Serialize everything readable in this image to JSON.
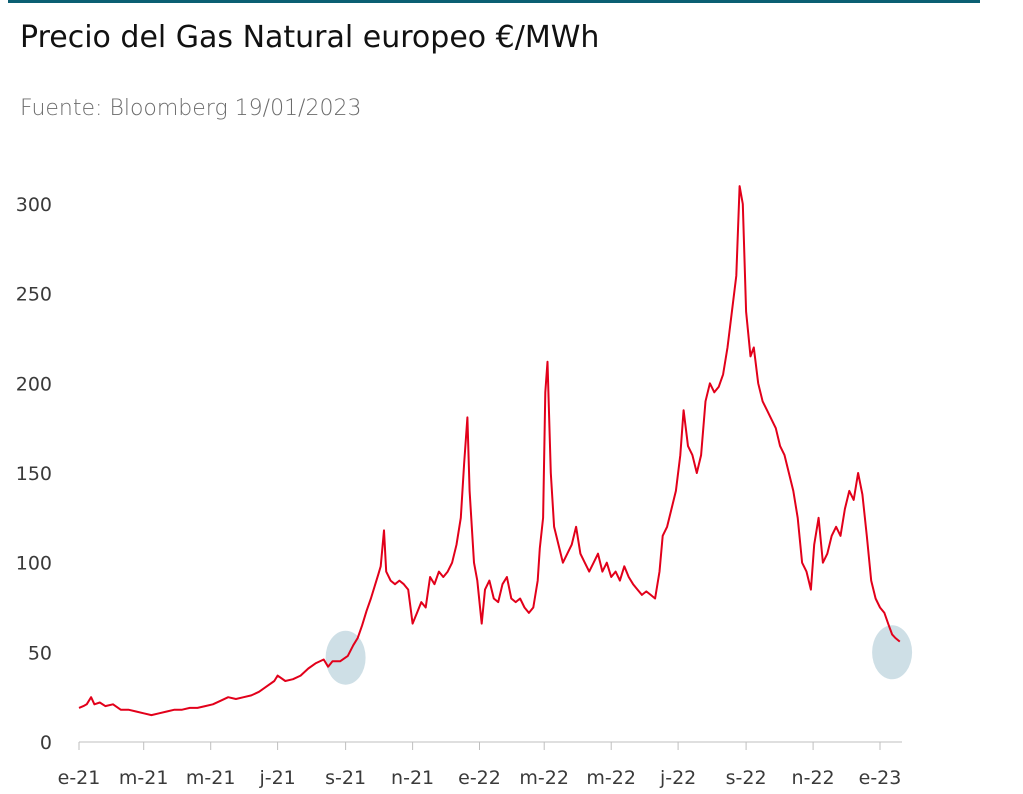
{
  "title": "Precio del Gas Natural europeo €/MWh",
  "subtitle": "Fuente: Bloomberg 19/01/2023",
  "colors": {
    "line": "#e2001a",
    "rule": "#0b5f73",
    "highlight": "#c9dce3"
  },
  "chart_data": {
    "type": "line",
    "title": "Precio del Gas Natural europeo €/MWh",
    "xlabel": "",
    "ylabel": "",
    "ylim": [
      0,
      300
    ],
    "yticks": [
      0,
      50,
      100,
      150,
      200,
      250,
      300
    ],
    "xticks": [
      {
        "date": "2021-01-01",
        "label": "e-21"
      },
      {
        "date": "2021-03-01",
        "label": "m-21"
      },
      {
        "date": "2021-05-01",
        "label": "m-21"
      },
      {
        "date": "2021-07-01",
        "label": "j-21"
      },
      {
        "date": "2021-09-01",
        "label": "s-21"
      },
      {
        "date": "2021-11-01",
        "label": "n-21"
      },
      {
        "date": "2022-01-01",
        "label": "e-22"
      },
      {
        "date": "2022-03-01",
        "label": "m-22"
      },
      {
        "date": "2022-05-01",
        "label": "m-22"
      },
      {
        "date": "2022-07-01",
        "label": "j-22"
      },
      {
        "date": "2022-09-01",
        "label": "s-22"
      },
      {
        "date": "2022-11-01",
        "label": "n-22"
      },
      {
        "date": "2023-01-01",
        "label": "e-23"
      }
    ],
    "grid": false,
    "legend": "none",
    "highlights": [
      {
        "date": "2021-09-01",
        "value": 47
      },
      {
        "date": "2023-01-12",
        "value": 50
      }
    ],
    "series": [
      {
        "points": [
          [
            "2021-01-01",
            19
          ],
          [
            "2021-01-05",
            20
          ],
          [
            "2021-01-08",
            21
          ],
          [
            "2021-01-12",
            25
          ],
          [
            "2021-01-15",
            21
          ],
          [
            "2021-01-20",
            22
          ],
          [
            "2021-01-25",
            20
          ],
          [
            "2021-02-01",
            21
          ],
          [
            "2021-02-08",
            18
          ],
          [
            "2021-02-15",
            18
          ],
          [
            "2021-02-22",
            17
          ],
          [
            "2021-03-01",
            16
          ],
          [
            "2021-03-08",
            15
          ],
          [
            "2021-03-15",
            16
          ],
          [
            "2021-03-22",
            17
          ],
          [
            "2021-03-29",
            18
          ],
          [
            "2021-04-05",
            18
          ],
          [
            "2021-04-12",
            19
          ],
          [
            "2021-04-19",
            19
          ],
          [
            "2021-04-26",
            20
          ],
          [
            "2021-05-03",
            21
          ],
          [
            "2021-05-10",
            23
          ],
          [
            "2021-05-17",
            25
          ],
          [
            "2021-05-24",
            24
          ],
          [
            "2021-05-31",
            25
          ],
          [
            "2021-06-07",
            26
          ],
          [
            "2021-06-14",
            28
          ],
          [
            "2021-06-21",
            31
          ],
          [
            "2021-06-28",
            34
          ],
          [
            "2021-07-01",
            37
          ],
          [
            "2021-07-08",
            34
          ],
          [
            "2021-07-15",
            35
          ],
          [
            "2021-07-22",
            37
          ],
          [
            "2021-07-29",
            41
          ],
          [
            "2021-08-05",
            44
          ],
          [
            "2021-08-12",
            46
          ],
          [
            "2021-08-16",
            42
          ],
          [
            "2021-08-20",
            45
          ],
          [
            "2021-08-27",
            45
          ],
          [
            "2021-09-03",
            48
          ],
          [
            "2021-09-08",
            54
          ],
          [
            "2021-09-12",
            58
          ],
          [
            "2021-09-16",
            65
          ],
          [
            "2021-09-20",
            73
          ],
          [
            "2021-09-24",
            80
          ],
          [
            "2021-09-28",
            88
          ],
          [
            "2021-10-01",
            94
          ],
          [
            "2021-10-03",
            98
          ],
          [
            "2021-10-06",
            118
          ],
          [
            "2021-10-08",
            95
          ],
          [
            "2021-10-12",
            90
          ],
          [
            "2021-10-16",
            88
          ],
          [
            "2021-10-20",
            90
          ],
          [
            "2021-10-24",
            88
          ],
          [
            "2021-10-28",
            85
          ],
          [
            "2021-11-01",
            66
          ],
          [
            "2021-11-05",
            72
          ],
          [
            "2021-11-09",
            78
          ],
          [
            "2021-11-13",
            75
          ],
          [
            "2021-11-17",
            92
          ],
          [
            "2021-11-21",
            88
          ],
          [
            "2021-11-25",
            95
          ],
          [
            "2021-11-29",
            92
          ],
          [
            "2021-12-03",
            95
          ],
          [
            "2021-12-07",
            100
          ],
          [
            "2021-12-11",
            110
          ],
          [
            "2021-12-15",
            125
          ],
          [
            "2021-12-18",
            155
          ],
          [
            "2021-12-21",
            181
          ],
          [
            "2021-12-23",
            140
          ],
          [
            "2021-12-27",
            100
          ],
          [
            "2021-12-30",
            90
          ],
          [
            "2022-01-03",
            66
          ],
          [
            "2022-01-06",
            85
          ],
          [
            "2022-01-10",
            90
          ],
          [
            "2022-01-14",
            80
          ],
          [
            "2022-01-18",
            78
          ],
          [
            "2022-01-22",
            88
          ],
          [
            "2022-01-26",
            92
          ],
          [
            "2022-01-30",
            80
          ],
          [
            "2022-02-03",
            78
          ],
          [
            "2022-02-07",
            80
          ],
          [
            "2022-02-11",
            75
          ],
          [
            "2022-02-15",
            72
          ],
          [
            "2022-02-19",
            75
          ],
          [
            "2022-02-23",
            90
          ],
          [
            "2022-02-25",
            108
          ],
          [
            "2022-02-28",
            125
          ],
          [
            "2022-03-02",
            195
          ],
          [
            "2022-03-04",
            212
          ],
          [
            "2022-03-07",
            150
          ],
          [
            "2022-03-10",
            120
          ],
          [
            "2022-03-14",
            110
          ],
          [
            "2022-03-18",
            100
          ],
          [
            "2022-03-22",
            105
          ],
          [
            "2022-03-26",
            110
          ],
          [
            "2022-03-30",
            120
          ],
          [
            "2022-04-03",
            105
          ],
          [
            "2022-04-07",
            100
          ],
          [
            "2022-04-11",
            95
          ],
          [
            "2022-04-15",
            100
          ],
          [
            "2022-04-19",
            105
          ],
          [
            "2022-04-23",
            95
          ],
          [
            "2022-04-27",
            100
          ],
          [
            "2022-05-01",
            92
          ],
          [
            "2022-05-05",
            95
          ],
          [
            "2022-05-09",
            90
          ],
          [
            "2022-05-13",
            98
          ],
          [
            "2022-05-17",
            92
          ],
          [
            "2022-05-21",
            88
          ],
          [
            "2022-05-25",
            85
          ],
          [
            "2022-05-29",
            82
          ],
          [
            "2022-06-02",
            84
          ],
          [
            "2022-06-06",
            82
          ],
          [
            "2022-06-10",
            80
          ],
          [
            "2022-06-14",
            95
          ],
          [
            "2022-06-17",
            115
          ],
          [
            "2022-06-21",
            120
          ],
          [
            "2022-06-25",
            130
          ],
          [
            "2022-06-29",
            140
          ],
          [
            "2022-07-03",
            160
          ],
          [
            "2022-07-06",
            185
          ],
          [
            "2022-07-10",
            165
          ],
          [
            "2022-07-14",
            160
          ],
          [
            "2022-07-18",
            150
          ],
          [
            "2022-07-22",
            160
          ],
          [
            "2022-07-26",
            190
          ],
          [
            "2022-07-30",
            200
          ],
          [
            "2022-08-03",
            195
          ],
          [
            "2022-08-07",
            198
          ],
          [
            "2022-08-11",
            205
          ],
          [
            "2022-08-15",
            220
          ],
          [
            "2022-08-19",
            240
          ],
          [
            "2022-08-23",
            260
          ],
          [
            "2022-08-26",
            310
          ],
          [
            "2022-08-29",
            300
          ],
          [
            "2022-09-01",
            240
          ],
          [
            "2022-09-05",
            215
          ],
          [
            "2022-09-08",
            220
          ],
          [
            "2022-09-12",
            200
          ],
          [
            "2022-09-16",
            190
          ],
          [
            "2022-09-20",
            185
          ],
          [
            "2022-09-24",
            180
          ],
          [
            "2022-09-28",
            175
          ],
          [
            "2022-10-02",
            165
          ],
          [
            "2022-10-06",
            160
          ],
          [
            "2022-10-10",
            150
          ],
          [
            "2022-10-14",
            140
          ],
          [
            "2022-10-18",
            125
          ],
          [
            "2022-10-22",
            100
          ],
          [
            "2022-10-26",
            95
          ],
          [
            "2022-10-30",
            85
          ],
          [
            "2022-11-02",
            110
          ],
          [
            "2022-11-06",
            125
          ],
          [
            "2022-11-10",
            100
          ],
          [
            "2022-11-14",
            105
          ],
          [
            "2022-11-18",
            115
          ],
          [
            "2022-11-22",
            120
          ],
          [
            "2022-11-26",
            115
          ],
          [
            "2022-11-30",
            130
          ],
          [
            "2022-12-04",
            140
          ],
          [
            "2022-12-08",
            135
          ],
          [
            "2022-12-12",
            150
          ],
          [
            "2022-12-16",
            138
          ],
          [
            "2022-12-20",
            115
          ],
          [
            "2022-12-24",
            90
          ],
          [
            "2022-12-28",
            80
          ],
          [
            "2023-01-01",
            75
          ],
          [
            "2023-01-05",
            72
          ],
          [
            "2023-01-09",
            65
          ],
          [
            "2023-01-12",
            60
          ],
          [
            "2023-01-15",
            58
          ],
          [
            "2023-01-19",
            56
          ]
        ]
      }
    ]
  }
}
